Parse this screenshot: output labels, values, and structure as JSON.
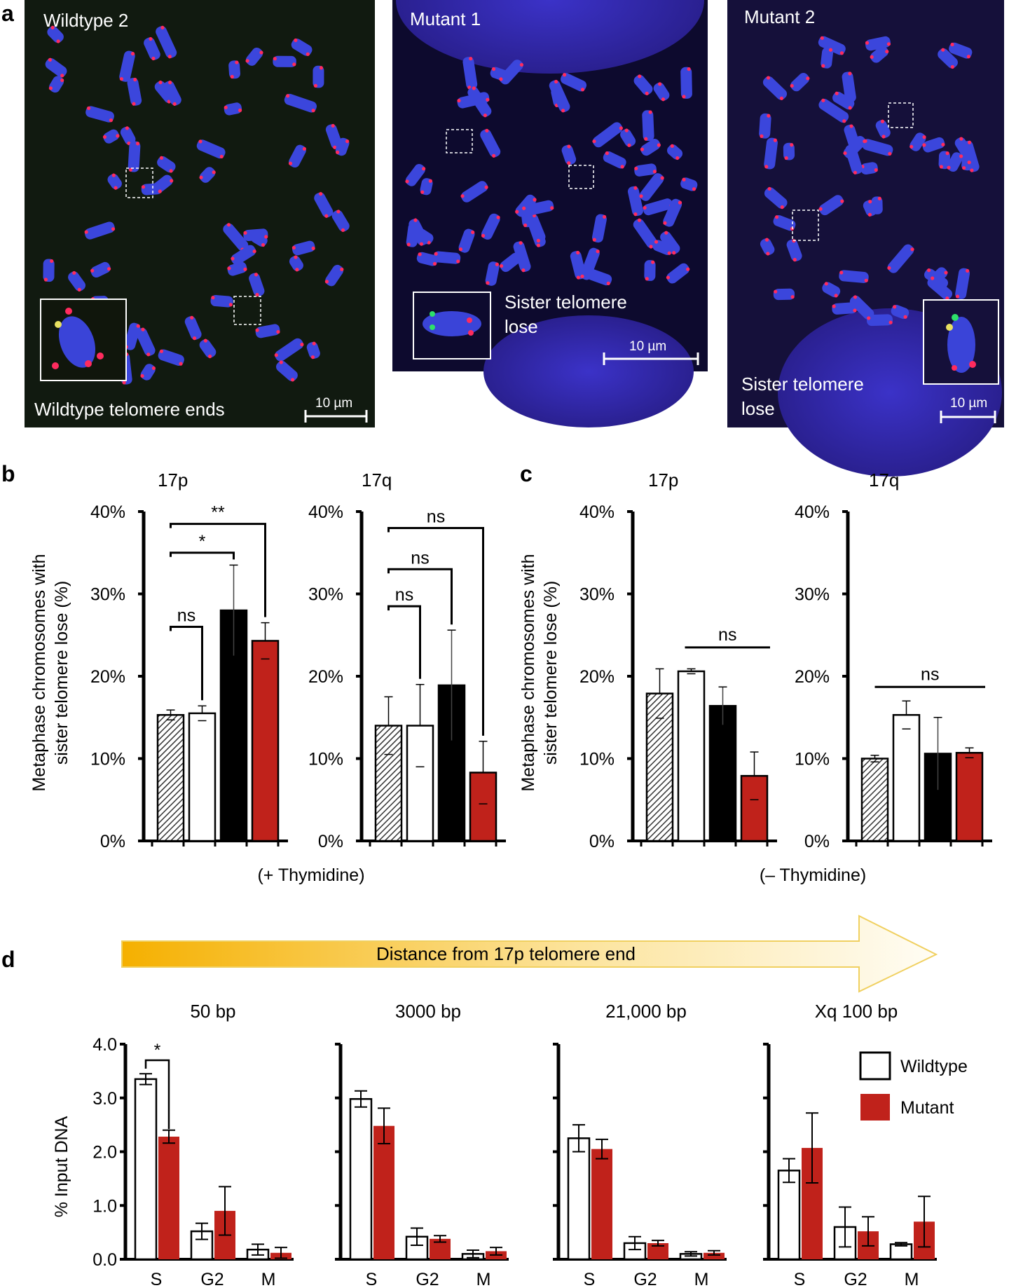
{
  "panel_letters": {
    "a": "a",
    "b": "b",
    "c": "c",
    "d": "d"
  },
  "micrographs": [
    {
      "title": "Wildtype 2",
      "caption": "Wildtype telomere ends",
      "scale": "10 µm"
    },
    {
      "title": "Mutant 1",
      "caption_line1": "Sister telomere",
      "caption_line2": "lose",
      "scale": "10 µm"
    },
    {
      "title": "Mutant 2",
      "caption_line1": "Sister telomere",
      "caption_line2": "lose",
      "scale": "10 µm"
    }
  ],
  "bc_ylabel_line1": "Metaphase chromosomes with",
  "bc_ylabel_line2": "sister telomere lose (%)",
  "colors": {
    "hatched": "#555555",
    "wildtype": "#ffffff",
    "black": "#000000",
    "mutant": "#c0221b",
    "arrow_start": "#f5b000",
    "arrow_end": "#fff8e0"
  },
  "chart_data": [
    {
      "panel": "b",
      "type": "bar",
      "title": "17p",
      "ylim": [
        0,
        40
      ],
      "ticks": [
        "0%",
        "10%",
        "20%",
        "30%",
        "40%"
      ],
      "bars": [
        {
          "value": 15.3,
          "error": 0.6,
          "fill": "hatched"
        },
        {
          "value": 15.5,
          "error": 0.9,
          "fill": "wildtype"
        },
        {
          "value": 28.0,
          "error": 5.5,
          "fill": "black"
        },
        {
          "value": 24.3,
          "error": 2.2,
          "fill": "mutant"
        }
      ],
      "brackets": [
        {
          "from": 0,
          "to": 1,
          "label": "ns",
          "y": 26
        },
        {
          "from": 0,
          "to": 2,
          "label": "*",
          "y": 35
        },
        {
          "from": 0,
          "to": 3,
          "label": "**",
          "y": 38.5
        }
      ]
    },
    {
      "panel": "b",
      "type": "bar",
      "title": "17q",
      "ylim": [
        0,
        40
      ],
      "ticks": [
        "0%",
        "10%",
        "20%",
        "30%",
        "40%"
      ],
      "bars": [
        {
          "value": 14.0,
          "error": 3.5,
          "fill": "hatched"
        },
        {
          "value": 14.0,
          "error": 5.0,
          "fill": "wildtype"
        },
        {
          "value": 18.9,
          "error": 6.7,
          "fill": "black"
        },
        {
          "value": 8.3,
          "error": 3.8,
          "fill": "mutant"
        }
      ],
      "brackets": [
        {
          "from": 0,
          "to": 1,
          "label": "ns",
          "y": 28.5
        },
        {
          "from": 0,
          "to": 2,
          "label": "ns",
          "y": 33
        },
        {
          "from": 0,
          "to": 3,
          "label": "ns",
          "y": 38
        }
      ]
    },
    {
      "panel": "c",
      "type": "bar",
      "title": "17p",
      "ylim": [
        0,
        40
      ],
      "ticks": [
        "0%",
        "10%",
        "20%",
        "30%",
        "40%"
      ],
      "bars": [
        {
          "value": 17.9,
          "error": 3.0,
          "fill": "hatched"
        },
        {
          "value": 20.6,
          "error": 0.3,
          "fill": "wildtype"
        },
        {
          "value": 16.4,
          "error": 2.3,
          "fill": "black"
        },
        {
          "value": 7.9,
          "error": 2.9,
          "fill": "mutant"
        }
      ],
      "lines": [
        {
          "from": 0.8,
          "to": 3.5,
          "label": "ns",
          "y": 23.5
        }
      ]
    },
    {
      "panel": "c",
      "type": "bar",
      "title": "17q",
      "ylim": [
        0,
        40
      ],
      "ticks": [
        "0%",
        "10%",
        "20%",
        "30%",
        "40%"
      ],
      "bars": [
        {
          "value": 10.0,
          "error": 0.4,
          "fill": "hatched"
        },
        {
          "value": 15.3,
          "error": 1.7,
          "fill": "wildtype"
        },
        {
          "value": 10.6,
          "error": 4.4,
          "fill": "black"
        },
        {
          "value": 10.7,
          "error": 0.6,
          "fill": "mutant"
        }
      ],
      "lines": [
        {
          "from": 0,
          "to": 3.5,
          "label": "ns",
          "y": 18.7
        }
      ]
    }
  ],
  "treatment_labels": {
    "plus": "(+ Thymidine)",
    "minus": "(– Thymidine)"
  },
  "arrow_label": "Distance from 17p telomere end",
  "d_ylabel": "% Input DNA",
  "d_ticks": [
    "0.0",
    "1.0",
    "2.0",
    "3.0",
    "4.0"
  ],
  "d_categories": [
    "S",
    "G2",
    "M"
  ],
  "d_panels": [
    {
      "title": "50 bp",
      "ylim": [
        0,
        4
      ],
      "series": [
        {
          "name": "Wildtype",
          "values": [
            3.35,
            0.52,
            0.18
          ],
          "errors": [
            0.1,
            0.15,
            0.1
          ]
        },
        {
          "name": "Mutant",
          "values": [
            2.28,
            0.9,
            0.12
          ],
          "errors": [
            0.12,
            0.45,
            0.1
          ]
        }
      ],
      "bracket": {
        "label": "*",
        "y": 3.7
      }
    },
    {
      "title": "3000 bp",
      "ylim": [
        0,
        4
      ],
      "series": [
        {
          "name": "Wildtype",
          "values": [
            2.98,
            0.42,
            0.1
          ],
          "errors": [
            0.15,
            0.16,
            0.07
          ]
        },
        {
          "name": "Mutant",
          "values": [
            2.48,
            0.38,
            0.15
          ],
          "errors": [
            0.33,
            0.06,
            0.07
          ]
        }
      ]
    },
    {
      "title": "21,000 bp",
      "ylim": [
        0,
        4
      ],
      "series": [
        {
          "name": "Wildtype",
          "values": [
            2.25,
            0.3,
            0.1
          ],
          "errors": [
            0.25,
            0.12,
            0.04
          ]
        },
        {
          "name": "Mutant",
          "values": [
            2.05,
            0.3,
            0.12
          ],
          "errors": [
            0.18,
            0.05,
            0.04
          ]
        }
      ]
    },
    {
      "title": "Xq 100 bp",
      "ylim": [
        0,
        4
      ],
      "series": [
        {
          "name": "Wildtype",
          "values": [
            1.65,
            0.6,
            0.28
          ],
          "errors": [
            0.22,
            0.37,
            0.03
          ]
        },
        {
          "name": "Mutant",
          "values": [
            2.07,
            0.52,
            0.7
          ],
          "errors": [
            0.65,
            0.27,
            0.47
          ]
        }
      ]
    }
  ],
  "legend": [
    {
      "label": "Wildtype",
      "color": "#ffffff"
    },
    {
      "label": "Mutant",
      "color": "#c0221b"
    }
  ]
}
